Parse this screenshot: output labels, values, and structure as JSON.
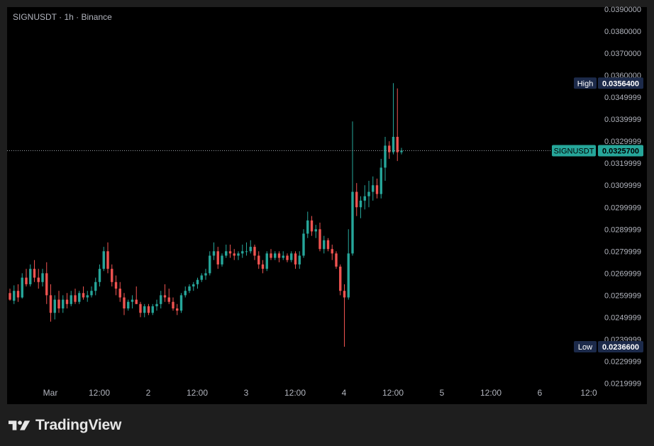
{
  "header": {
    "title": "SIGNUSDT · 1h · Binance"
  },
  "footer": {
    "brand": "TradingView"
  },
  "colors": {
    "up": "#26a69a",
    "down": "#ef5350",
    "bg": "#000000",
    "frame": "#1e1e1e",
    "axis_text": "#b2b5be",
    "badge_dark": "#1c2a4a",
    "badge_price": "#26a69a"
  },
  "chart_data": {
    "type": "candlestick",
    "title": "SIGNUSDT · 1h · Binance",
    "ylim": [
      0.0215,
      0.039
    ],
    "y_ticks": [
      "0.0390000",
      "0.0380000",
      "0.0370000",
      "0.0360000",
      "0.0349999",
      "0.0339999",
      "0.0329999",
      "0.0319999",
      "0.0309999",
      "0.0299999",
      "0.0289999",
      "0.0279999",
      "0.0269999",
      "0.0259999",
      "0.0249999",
      "0.0239999",
      "0.0229999",
      "0.0219999"
    ],
    "x_ticks": [
      "Mar",
      "12:00",
      "2",
      "12:00",
      "3",
      "12:00",
      "4",
      "12:00",
      "5",
      "12:00",
      "6",
      "12:0"
    ],
    "high": {
      "label": "High",
      "value": "0.0356400"
    },
    "low": {
      "label": "Low",
      "value": "0.0236600"
    },
    "last": {
      "label": "SIGNUSDT",
      "value": "0.0325700"
    },
    "candles": [
      [
        0.0261,
        0.0263,
        0.02575,
        0.0258
      ],
      [
        0.02575,
        0.02645,
        0.0256,
        0.0262
      ],
      [
        0.0262,
        0.0265,
        0.0257,
        0.0259
      ],
      [
        0.0259,
        0.027,
        0.02585,
        0.0268
      ],
      [
        0.0268,
        0.0272,
        0.0264,
        0.0265
      ],
      [
        0.0265,
        0.0274,
        0.0264,
        0.0272
      ],
      [
        0.0272,
        0.0276,
        0.0266,
        0.0268
      ],
      [
        0.0268,
        0.0272,
        0.0263,
        0.0266
      ],
      [
        0.0266,
        0.0272,
        0.0264,
        0.027
      ],
      [
        0.027,
        0.0275,
        0.0256,
        0.026
      ],
      [
        0.026,
        0.0265,
        0.0248,
        0.0252
      ],
      [
        0.0252,
        0.026,
        0.0249,
        0.0258
      ],
      [
        0.0258,
        0.0262,
        0.0252,
        0.0254
      ],
      [
        0.0254,
        0.026,
        0.0252,
        0.0258
      ],
      [
        0.0258,
        0.0261,
        0.0254,
        0.0256
      ],
      [
        0.0256,
        0.0262,
        0.0255,
        0.026
      ],
      [
        0.026,
        0.0263,
        0.0256,
        0.0257
      ],
      [
        0.0257,
        0.0262,
        0.0256,
        0.0261
      ],
      [
        0.0261,
        0.0264,
        0.0258,
        0.0259
      ],
      [
        0.0259,
        0.0262,
        0.0257,
        0.026
      ],
      [
        0.026,
        0.0264,
        0.0259,
        0.0262
      ],
      [
        0.0262,
        0.0268,
        0.026,
        0.0266
      ],
      [
        0.0266,
        0.0274,
        0.0264,
        0.0272
      ],
      [
        0.0272,
        0.0282,
        0.0271,
        0.028
      ],
      [
        0.028,
        0.0284,
        0.027,
        0.0272
      ],
      [
        0.0272,
        0.0274,
        0.0264,
        0.0266
      ],
      [
        0.0266,
        0.0269,
        0.026,
        0.0263
      ],
      [
        0.0263,
        0.0266,
        0.0257,
        0.0259
      ],
      [
        0.0259,
        0.0261,
        0.0251,
        0.0254
      ],
      [
        0.0254,
        0.0258,
        0.0253,
        0.0257
      ],
      [
        0.0257,
        0.026,
        0.0254,
        0.0258
      ],
      [
        0.0258,
        0.0264,
        0.0256,
        0.0256
      ],
      [
        0.0256,
        0.0257,
        0.025,
        0.0252
      ],
      [
        0.0252,
        0.0256,
        0.025,
        0.0255
      ],
      [
        0.0255,
        0.0256,
        0.0251,
        0.0252
      ],
      [
        0.0252,
        0.0256,
        0.0251,
        0.0255
      ],
      [
        0.0255,
        0.0258,
        0.0253,
        0.0256
      ],
      [
        0.0256,
        0.0262,
        0.0254,
        0.026
      ],
      [
        0.026,
        0.0265,
        0.0257,
        0.0259
      ],
      [
        0.0259,
        0.0263,
        0.0256,
        0.0257
      ],
      [
        0.0257,
        0.0259,
        0.0253,
        0.0254
      ],
      [
        0.0254,
        0.0256,
        0.0251,
        0.0253
      ],
      [
        0.0253,
        0.0261,
        0.0252,
        0.026
      ],
      [
        0.026,
        0.0264,
        0.0259,
        0.0262
      ],
      [
        0.0262,
        0.0265,
        0.0261,
        0.0264
      ],
      [
        0.0264,
        0.0266,
        0.0262,
        0.0265
      ],
      [
        0.0265,
        0.0268,
        0.0263,
        0.0267
      ],
      [
        0.0267,
        0.027,
        0.0266,
        0.0269
      ],
      [
        0.0269,
        0.0272,
        0.0267,
        0.027
      ],
      [
        0.027,
        0.028,
        0.0269,
        0.0278
      ],
      [
        0.0278,
        0.0284,
        0.0276,
        0.028
      ],
      [
        0.028,
        0.0282,
        0.0272,
        0.0274
      ],
      [
        0.0274,
        0.0279,
        0.0273,
        0.0278
      ],
      [
        0.0278,
        0.0283,
        0.0277,
        0.028
      ],
      [
        0.028,
        0.0283,
        0.0277,
        0.0279
      ],
      [
        0.0279,
        0.0281,
        0.0276,
        0.0278
      ],
      [
        0.0278,
        0.028,
        0.0276,
        0.0279
      ],
      [
        0.0279,
        0.0283,
        0.0277,
        0.028
      ],
      [
        0.028,
        0.0284,
        0.0278,
        0.028
      ],
      [
        0.028,
        0.0285,
        0.0279,
        0.0282
      ],
      [
        0.0282,
        0.0283,
        0.0276,
        0.0278
      ],
      [
        0.0278,
        0.028,
        0.0272,
        0.0274
      ],
      [
        0.0274,
        0.0276,
        0.027,
        0.0272
      ],
      [
        0.0272,
        0.028,
        0.0271,
        0.0279
      ],
      [
        0.0279,
        0.0281,
        0.0276,
        0.0277
      ],
      [
        0.0277,
        0.028,
        0.0276,
        0.0279
      ],
      [
        0.0279,
        0.028,
        0.0275,
        0.0277
      ],
      [
        0.0277,
        0.028,
        0.0276,
        0.0278
      ],
      [
        0.0278,
        0.0279,
        0.0275,
        0.0276
      ],
      [
        0.0276,
        0.028,
        0.0275,
        0.0279
      ],
      [
        0.0279,
        0.028,
        0.0272,
        0.0274
      ],
      [
        0.0274,
        0.028,
        0.0272,
        0.0278
      ],
      [
        0.0278,
        0.029,
        0.0277,
        0.0288
      ],
      [
        0.0288,
        0.0298,
        0.0286,
        0.0294
      ],
      [
        0.0294,
        0.0296,
        0.0287,
        0.0289
      ],
      [
        0.0289,
        0.0292,
        0.0286,
        0.029
      ],
      [
        0.029,
        0.0293,
        0.028,
        0.0281
      ],
      [
        0.0281,
        0.0287,
        0.0279,
        0.0285
      ],
      [
        0.0285,
        0.0286,
        0.028,
        0.0281
      ],
      [
        0.0281,
        0.0283,
        0.0276,
        0.0279
      ],
      [
        0.0279,
        0.028,
        0.0272,
        0.0273
      ],
      [
        0.0273,
        0.0274,
        0.026,
        0.0262
      ],
      [
        0.0262,
        0.0265,
        0.02366,
        0.0259
      ],
      [
        0.0259,
        0.029,
        0.0258,
        0.0279
      ],
      [
        0.0279,
        0.0339,
        0.0278,
        0.0307
      ],
      [
        0.0307,
        0.0311,
        0.0296,
        0.03
      ],
      [
        0.03,
        0.0305,
        0.0295,
        0.0303
      ],
      [
        0.0303,
        0.031,
        0.0299,
        0.0305
      ],
      [
        0.0305,
        0.0312,
        0.03,
        0.0307
      ],
      [
        0.0307,
        0.0314,
        0.0303,
        0.031
      ],
      [
        0.031,
        0.0313,
        0.0304,
        0.0306
      ],
      [
        0.0306,
        0.0322,
        0.0304,
        0.0318
      ],
      [
        0.0318,
        0.0332,
        0.0312,
        0.0328
      ],
      [
        0.0328,
        0.033,
        0.0322,
        0.0325
      ],
      [
        0.0325,
        0.03564,
        0.0324,
        0.0332
      ],
      [
        0.0332,
        0.0354,
        0.0321,
        0.0325
      ],
      [
        0.0325,
        0.0327,
        0.0324,
        0.03257
      ]
    ]
  }
}
